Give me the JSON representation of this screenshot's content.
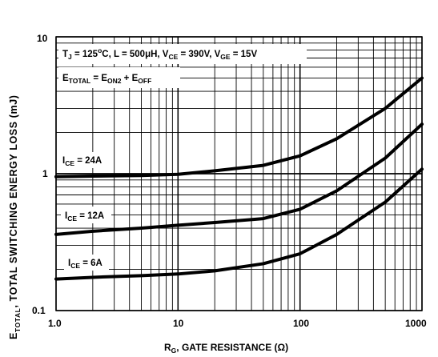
{
  "chart_data": {
    "type": "line",
    "xscale": "log",
    "yscale": "log",
    "xlim": [
      1,
      1000
    ],
    "ylim": [
      0.1,
      10
    ],
    "grid": true,
    "x_ticks": [
      "1.0",
      "10",
      "100",
      "1000"
    ],
    "y_ticks": [
      "0.1",
      "1",
      "10"
    ],
    "xlabel": {
      "main": "R",
      "sub": "G",
      "rest": ", GATE RESISTANCE (Ω)"
    },
    "ylabel": {
      "main": "E",
      "sub": "TOTAL",
      "rest": ", TOTAL SWITCHING ENERGY LOSS (mJ)"
    },
    "conditions": {
      "tj": {
        "main": "T",
        "sub": "J",
        "rest": " = 125"
      },
      "deg": {
        "sup": "o",
        "rest": "C, L = 500μH, V"
      },
      "vce": {
        "sub": "CE",
        "rest": " = 390V, V"
      },
      "vge": {
        "sub": "GE",
        "rest": " = 15V"
      }
    },
    "formula": {
      "e1": "E",
      "e1sub": "TOTAL",
      "eq": " = E",
      "e2sub": "ON2",
      "plus": " + E",
      "e3sub": "OFF"
    },
    "series": [
      {
        "name": "I_CE = 24A",
        "label_main": "I",
        "label_sub": "CE",
        "label_rest": " = 24A",
        "x": [
          1,
          2,
          5,
          10,
          20,
          50,
          100,
          200,
          500,
          1000
        ],
        "y": [
          0.95,
          0.96,
          0.97,
          0.99,
          1.05,
          1.15,
          1.35,
          1.8,
          3.0,
          5.0
        ]
      },
      {
        "name": "I_CE = 12A",
        "label_main": "I",
        "label_sub": "CE",
        "label_rest": " = 12A",
        "x": [
          1,
          2,
          5,
          10,
          20,
          50,
          100,
          200,
          500,
          1000
        ],
        "y": [
          0.36,
          0.38,
          0.4,
          0.42,
          0.44,
          0.47,
          0.55,
          0.75,
          1.3,
          2.3
        ]
      },
      {
        "name": "I_CE = 6A",
        "label_main": "I",
        "label_sub": "CE",
        "label_rest": " = 6A",
        "x": [
          1,
          2,
          5,
          10,
          20,
          50,
          100,
          200,
          500,
          1000
        ],
        "y": [
          0.17,
          0.175,
          0.18,
          0.185,
          0.195,
          0.22,
          0.26,
          0.36,
          0.62,
          1.08
        ]
      }
    ]
  }
}
